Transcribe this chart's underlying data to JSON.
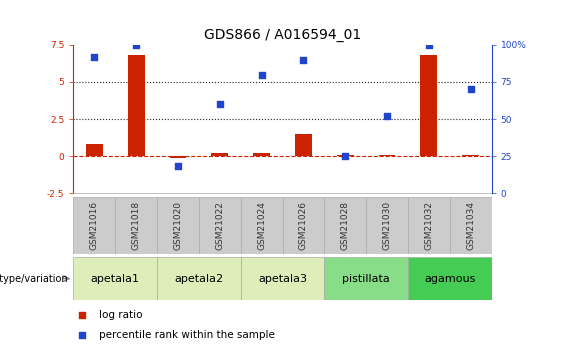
{
  "title": "GDS866 / A016594_01",
  "samples": [
    "GSM21016",
    "GSM21018",
    "GSM21020",
    "GSM21022",
    "GSM21024",
    "GSM21026",
    "GSM21028",
    "GSM21030",
    "GSM21032",
    "GSM21034"
  ],
  "log_ratio": [
    0.8,
    6.8,
    -0.15,
    0.2,
    0.2,
    1.5,
    0.05,
    0.1,
    6.8,
    0.1
  ],
  "percentile_rank": [
    92,
    100,
    18,
    60,
    80,
    90,
    25,
    52,
    100,
    70
  ],
  "ylim_left": [
    -2.5,
    7.5
  ],
  "ylim_right": [
    0,
    100
  ],
  "yticks_left": [
    -2.5,
    0,
    2.5,
    5,
    7.5
  ],
  "yticks_right": [
    0,
    25,
    50,
    75,
    100
  ],
  "ytick_labels_left": [
    "-2.5",
    "0",
    "2.5",
    "5",
    "7.5"
  ],
  "ytick_labels_right": [
    "0",
    "25",
    "50",
    "75",
    "100%"
  ],
  "hlines_y": [
    0,
    2.5,
    5
  ],
  "hline_styles": [
    "dashed",
    "dotted",
    "dotted"
  ],
  "hline_colors": [
    "#cc2200",
    "#222222",
    "#222222"
  ],
  "bar_color": "#cc2200",
  "square_color": "#2244cc",
  "bar_width": 0.4,
  "square_size": 22,
  "groups": [
    {
      "label": "apetala1",
      "samples": [
        0,
        1
      ],
      "color": "#ddeebb"
    },
    {
      "label": "apetala2",
      "samples": [
        2,
        3
      ],
      "color": "#ddeebb"
    },
    {
      "label": "apetala3",
      "samples": [
        4,
        5
      ],
      "color": "#ddeebb"
    },
    {
      "label": "pistillata",
      "samples": [
        6,
        7
      ],
      "color": "#88dd88"
    },
    {
      "label": "agamous",
      "samples": [
        8,
        9
      ],
      "color": "#44cc55"
    }
  ],
  "genotype_label": "genotype/variation",
  "legend_bar_label": "log ratio",
  "legend_sq_label": "percentile rank within the sample",
  "title_fontsize": 10,
  "tick_fontsize": 6.5,
  "label_fontsize": 7.5,
  "group_label_fontsize": 8,
  "sample_box_color": "#cccccc",
  "sample_box_edge": "#aaaaaa",
  "group_box_edge": "#aaaaaa"
}
